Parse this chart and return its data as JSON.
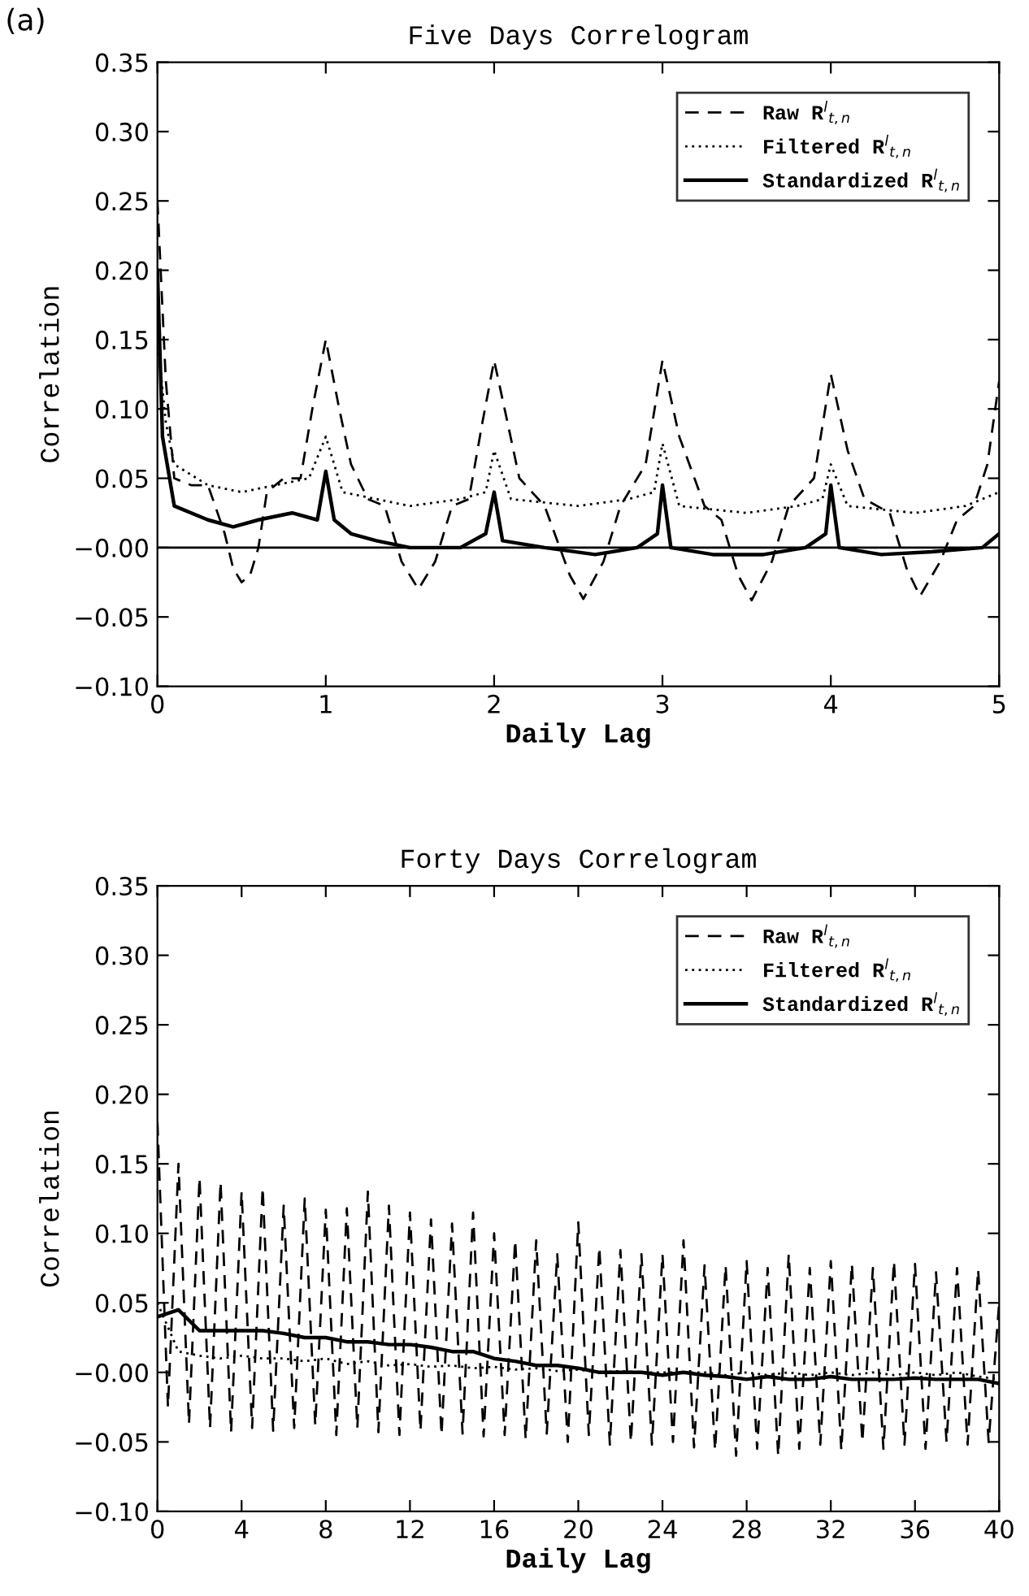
{
  "chart_data": [
    {
      "type": "line",
      "title": "Five Days Correlogram",
      "xlabel": "Daily Lag",
      "ylabel": "Correlation",
      "annotations": [
        "(a)"
      ],
      "xlim": [
        0,
        5
      ],
      "xticks": [
        0,
        1,
        2,
        3,
        4,
        5
      ],
      "ylim": [
        -0.1,
        0.35
      ],
      "yticks": [
        {
          "value": -0.1,
          "label": "−0.10"
        },
        {
          "value": -0.05,
          "label": "−0.05"
        },
        {
          "value": 0,
          "label": "−0.00"
        },
        {
          "value": 0.05,
          "label": "0.05"
        },
        {
          "value": 0.1,
          "label": "0.10"
        },
        {
          "value": 0.15,
          "label": "0.15"
        },
        {
          "value": 0.2,
          "label": "0.20"
        },
        {
          "value": 0.25,
          "label": "0.25"
        },
        {
          "value": 0.3,
          "label": "0.30"
        },
        {
          "value": 0.35,
          "label": "0.35"
        }
      ],
      "legend": "top right",
      "grid": false,
      "ref_lines": [
        {
          "axis": "y",
          "value": 0,
          "color": "#000000",
          "line_style": "solid"
        }
      ],
      "series": [
        {
          "name": "Raw R$^{l}$$_{t,n}$",
          "color": "#000000",
          "line_style": "dashed",
          "x": [
            0,
            0.05,
            0.1,
            0.2,
            0.3,
            0.4,
            0.45,
            0.5,
            0.55,
            0.6,
            0.65,
            0.75,
            0.85,
            0.92,
            1.0,
            1.08,
            1.15,
            1.25,
            1.35,
            1.45,
            1.55,
            1.65,
            1.75,
            1.85,
            1.93,
            2.0,
            2.08,
            2.15,
            2.3,
            2.45,
            2.53,
            2.65,
            2.75,
            2.9,
            3.0,
            3.1,
            3.25,
            3.35,
            3.45,
            3.53,
            3.65,
            3.75,
            3.9,
            4.0,
            4.1,
            4.2,
            4.35,
            4.45,
            4.53,
            4.65,
            4.75,
            4.85,
            4.93,
            5.0
          ],
          "values": [
            0.25,
            0.12,
            0.05,
            0.045,
            0.045,
            0.01,
            -0.015,
            -0.025,
            -0.02,
            0.0,
            0.04,
            0.05,
            0.05,
            0.1,
            0.15,
            0.1,
            0.06,
            0.035,
            0.03,
            -0.01,
            -0.03,
            -0.01,
            0.03,
            0.035,
            0.09,
            0.135,
            0.09,
            0.05,
            0.03,
            -0.02,
            -0.037,
            -0.01,
            0.03,
            0.06,
            0.135,
            0.08,
            0.03,
            0.02,
            -0.02,
            -0.038,
            -0.01,
            0.03,
            0.05,
            0.125,
            0.07,
            0.035,
            0.025,
            -0.015,
            -0.035,
            -0.01,
            0.02,
            0.03,
            0.06,
            0.12
          ]
        },
        {
          "name": "Filtered R$^{l}$$_{t,n}$",
          "color": "#000000",
          "line_style": "dotted",
          "x": [
            0,
            0.05,
            0.1,
            0.3,
            0.5,
            0.7,
            0.9,
            1.0,
            1.1,
            1.3,
            1.5,
            1.8,
            1.95,
            2.0,
            2.1,
            2.5,
            2.8,
            2.95,
            3.0,
            3.1,
            3.5,
            3.8,
            3.95,
            4.0,
            4.1,
            4.5,
            4.8,
            5.0
          ],
          "values": [
            0.15,
            0.09,
            0.06,
            0.045,
            0.04,
            0.045,
            0.05,
            0.08,
            0.04,
            0.035,
            0.03,
            0.035,
            0.04,
            0.07,
            0.035,
            0.03,
            0.035,
            0.04,
            0.075,
            0.03,
            0.025,
            0.03,
            0.035,
            0.06,
            0.03,
            0.025,
            0.03,
            0.04
          ]
        },
        {
          "name": "Standardized R$^{l}$$_{t,n}$",
          "color": "#000000",
          "line_style": "solid",
          "x": [
            0,
            0.03,
            0.1,
            0.3,
            0.45,
            0.6,
            0.8,
            0.95,
            1.0,
            1.05,
            1.15,
            1.3,
            1.5,
            1.8,
            1.95,
            2.0,
            2.05,
            2.3,
            2.6,
            2.85,
            2.97,
            3.0,
            3.05,
            3.3,
            3.6,
            3.85,
            3.97,
            4.0,
            4.05,
            4.3,
            4.6,
            4.9,
            5.0
          ],
          "values": [
            0.2,
            0.08,
            0.03,
            0.02,
            0.015,
            0.02,
            0.025,
            0.02,
            0.055,
            0.02,
            0.01,
            0.005,
            0.0,
            0.0,
            0.01,
            0.04,
            0.005,
            0.0,
            -0.005,
            0.0,
            0.01,
            0.045,
            0.0,
            -0.005,
            -0.005,
            0.0,
            0.01,
            0.045,
            0.0,
            -0.005,
            -0.003,
            0.0,
            0.01
          ]
        }
      ]
    },
    {
      "type": "line",
      "title": "Forty Days Correlogram",
      "xlabel": "Daily Lag",
      "ylabel": "Correlation",
      "xlim": [
        0,
        40
      ],
      "xticks": [
        0,
        4,
        8,
        12,
        16,
        20,
        24,
        28,
        32,
        36,
        40
      ],
      "ylim": [
        -0.1,
        0.35
      ],
      "yticks": [
        {
          "value": -0.1,
          "label": "−0.10"
        },
        {
          "value": -0.05,
          "label": "−0.05"
        },
        {
          "value": 0,
          "label": "−0.00"
        },
        {
          "value": 0.05,
          "label": "0.05"
        },
        {
          "value": 0.1,
          "label": "0.10"
        },
        {
          "value": 0.15,
          "label": "0.15"
        },
        {
          "value": 0.2,
          "label": "0.20"
        },
        {
          "value": 0.25,
          "label": "0.25"
        },
        {
          "value": 0.3,
          "label": "0.30"
        },
        {
          "value": 0.35,
          "label": "0.35"
        }
      ],
      "legend": "top right",
      "grid": false,
      "series": [
        {
          "name": "Raw R$^{l}$$_{t,n}$",
          "color": "#000000",
          "line_style": "dashed",
          "x": [
            0,
            0.5,
            1,
            1.5,
            2,
            2.5,
            3,
            3.5,
            4,
            4.5,
            5,
            5.5,
            6,
            6.5,
            7,
            7.5,
            8,
            8.5,
            9,
            9.5,
            10,
            10.5,
            11,
            11.5,
            12,
            12.5,
            13,
            13.5,
            14,
            14.5,
            15,
            15.5,
            16,
            16.5,
            17,
            17.5,
            18,
            18.5,
            19,
            19.5,
            20,
            20.5,
            21,
            21.5,
            22,
            22.5,
            23,
            23.5,
            24,
            24.5,
            25,
            25.5,
            26,
            26.5,
            27,
            27.5,
            28,
            28.5,
            29,
            29.5,
            30,
            30.5,
            31,
            31.5,
            32,
            32.5,
            33,
            33.5,
            34,
            34.5,
            35,
            35.5,
            36,
            36.5,
            37,
            37.5,
            38,
            38.5,
            39,
            39.5,
            40
          ],
          "values": [
            0.18,
            -0.025,
            0.15,
            -0.037,
            0.14,
            -0.04,
            0.137,
            -0.043,
            0.13,
            -0.04,
            0.133,
            -0.042,
            0.12,
            -0.04,
            0.125,
            -0.038,
            0.117,
            -0.045,
            0.118,
            -0.04,
            0.13,
            -0.043,
            0.12,
            -0.045,
            0.115,
            -0.042,
            0.11,
            -0.045,
            0.107,
            -0.044,
            0.115,
            -0.046,
            0.1,
            -0.045,
            0.095,
            -0.048,
            0.095,
            -0.044,
            0.085,
            -0.05,
            0.108,
            -0.045,
            0.09,
            -0.052,
            0.088,
            -0.05,
            0.085,
            -0.052,
            0.085,
            -0.05,
            0.095,
            -0.054,
            0.077,
            -0.056,
            0.077,
            -0.06,
            0.08,
            -0.055,
            0.075,
            -0.06,
            0.085,
            -0.055,
            0.075,
            -0.052,
            0.08,
            -0.056,
            0.078,
            -0.05,
            0.075,
            -0.055,
            0.08,
            -0.052,
            0.078,
            -0.055,
            0.072,
            -0.05,
            0.075,
            -0.052,
            0.074,
            -0.05,
            0.05
          ]
        },
        {
          "name": "Filtered R$^{l}$$_{t,n}$",
          "color": "#000000",
          "line_style": "dotted",
          "x": [
            0,
            1,
            2,
            3,
            4,
            5,
            6,
            7,
            8,
            9,
            10,
            11,
            12,
            13,
            14,
            15,
            16,
            17,
            18,
            19,
            20,
            21,
            22,
            23,
            24,
            25,
            26,
            27,
            28,
            29,
            30,
            31,
            32,
            33,
            34,
            35,
            36,
            37,
            38,
            39,
            40
          ],
          "values": [
            0.05,
            0.015,
            0.012,
            0.01,
            0.012,
            0.01,
            0.01,
            0.008,
            0.01,
            0.006,
            0.008,
            0.005,
            0.006,
            0.004,
            0.005,
            0.003,
            0.004,
            0.002,
            0.003,
            0.001,
            0.002,
            0.0,
            0.001,
            0.0,
            0.0,
            0.0,
            0.0,
            -0.002,
            0.0,
            -0.002,
            0.0,
            -0.002,
            0.0,
            -0.002,
            0.0,
            -0.002,
            0.0,
            -0.002,
            0.0,
            -0.003,
            -0.005
          ]
        },
        {
          "name": "Standardized R$^{l}$$_{t,n}$",
          "color": "#000000",
          "line_style": "solid",
          "x": [
            0,
            1,
            2,
            3,
            4,
            5,
            6,
            7,
            8,
            9,
            10,
            11,
            12,
            13,
            14,
            15,
            16,
            17,
            18,
            19,
            20,
            21,
            22,
            23,
            24,
            25,
            26,
            27,
            28,
            29,
            30,
            31,
            32,
            33,
            34,
            35,
            36,
            37,
            38,
            39,
            40
          ],
          "values": [
            0.04,
            0.045,
            0.03,
            0.03,
            0.03,
            0.03,
            0.028,
            0.025,
            0.025,
            0.022,
            0.022,
            0.02,
            0.02,
            0.018,
            0.015,
            0.015,
            0.01,
            0.008,
            0.005,
            0.005,
            0.003,
            0.0,
            0.0,
            0.0,
            -0.002,
            0.0,
            -0.002,
            -0.003,
            -0.005,
            -0.003,
            -0.005,
            -0.005,
            -0.003,
            -0.005,
            -0.005,
            -0.005,
            -0.004,
            -0.005,
            -0.005,
            -0.005,
            -0.008
          ]
        }
      ]
    }
  ]
}
